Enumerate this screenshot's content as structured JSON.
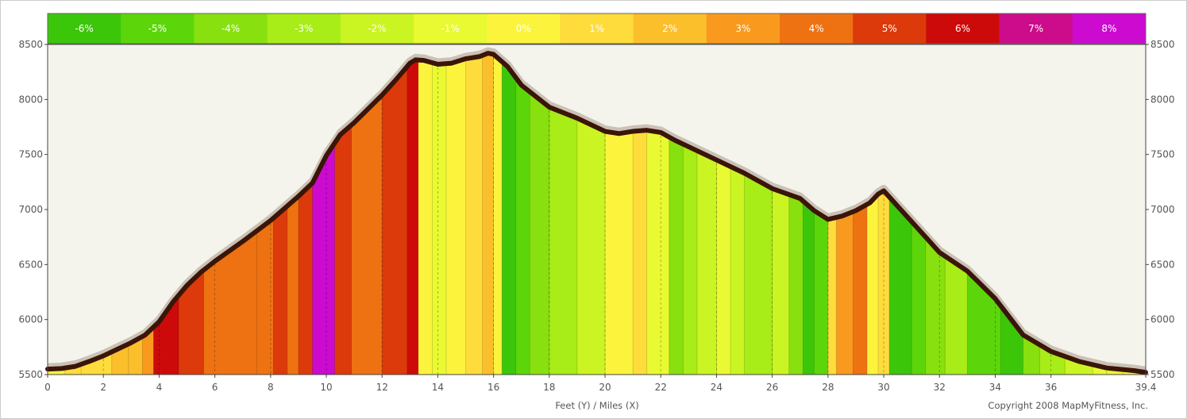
{
  "chart_data": {
    "type": "area",
    "title": "",
    "xlabel": "Feet (Y) / Miles (X)",
    "ylabel": "",
    "copyright": "Copyright 2008 MapMyFitness, Inc.",
    "xlim": [
      0,
      39.4
    ],
    "ylim": [
      5500,
      8500
    ],
    "x_ticks": [
      0,
      2,
      4,
      6,
      8,
      10,
      12,
      14,
      16,
      18,
      20,
      22,
      24,
      26,
      28,
      30,
      32,
      34,
      36,
      39.4
    ],
    "x_tick_labels": [
      "0",
      "2",
      "4",
      "6",
      "8",
      "10",
      "12",
      "14",
      "16",
      "18",
      "20",
      "22",
      "24",
      "26",
      "28",
      "30",
      "32",
      "34",
      "36",
      "39.4"
    ],
    "y_ticks": [
      5500,
      6000,
      6500,
      7000,
      7500,
      8000,
      8500
    ],
    "y_tick_labels": [
      "5500",
      "6000",
      "6500",
      "7000",
      "7500",
      "8000",
      "8500"
    ],
    "grid": false,
    "legend_position": "top",
    "legend": [
      {
        "grade": -6,
        "label": "-6%",
        "color": "#3cc60a"
      },
      {
        "grade": -5,
        "label": "-5%",
        "color": "#5cd60a"
      },
      {
        "grade": -4,
        "label": "-4%",
        "color": "#88e00e"
      },
      {
        "grade": -3,
        "label": "-3%",
        "color": "#a8ec18"
      },
      {
        "grade": -2,
        "label": "-2%",
        "color": "#cbf423"
      },
      {
        "grade": -1,
        "label": "-1%",
        "color": "#e9f932"
      },
      {
        "grade": 0,
        "label": "0%",
        "color": "#fcf43c"
      },
      {
        "grade": 1,
        "label": "1%",
        "color": "#fddc3c"
      },
      {
        "grade": 2,
        "label": "2%",
        "color": "#fbbf2c"
      },
      {
        "grade": 3,
        "label": "3%",
        "color": "#f99a1e"
      },
      {
        "grade": 4,
        "label": "4%",
        "color": "#ee7212"
      },
      {
        "grade": 5,
        "label": "5%",
        "color": "#dc3a0a"
      },
      {
        "grade": 6,
        "label": "6%",
        "color": "#cc0a0a"
      },
      {
        "grade": 7,
        "label": "7%",
        "color": "#cc0c8a"
      },
      {
        "grade": 8,
        "label": "8%",
        "color": "#cc0ad0"
      }
    ],
    "colors": {
      "plot_background": "#f5f4ec",
      "outline": "#3a1508",
      "legend_border": "#666666",
      "frame": "#444444"
    },
    "series": [
      {
        "x": [
          0,
          0.5,
          1,
          1.5,
          2,
          2.5,
          3,
          3.5,
          4,
          4.5,
          5,
          5.5,
          6,
          7,
          8,
          9,
          9.5,
          10,
          10.5,
          11,
          12,
          12.5,
          13,
          13.2,
          13.5,
          14,
          14.5,
          15,
          15.5,
          15.8,
          16,
          16.5,
          17,
          18,
          19,
          20,
          20.5,
          21,
          21.5,
          22,
          22.5,
          23,
          24,
          25,
          26,
          27,
          27.5,
          28,
          28.5,
          29,
          29.5,
          29.8,
          30,
          30.5,
          31,
          31.5,
          32,
          33,
          34,
          35,
          36,
          37,
          38,
          39,
          39.4
        ],
        "y": [
          5550,
          5555,
          5575,
          5620,
          5670,
          5730,
          5790,
          5860,
          5980,
          6160,
          6310,
          6430,
          6530,
          6710,
          6900,
          7120,
          7240,
          7490,
          7680,
          7790,
          8040,
          8180,
          8330,
          8360,
          8355,
          8320,
          8330,
          8370,
          8390,
          8420,
          8410,
          8300,
          8130,
          7930,
          7830,
          7710,
          7690,
          7710,
          7720,
          7700,
          7630,
          7570,
          7450,
          7330,
          7190,
          7100,
          6990,
          6910,
          6940,
          6990,
          7060,
          7140,
          7170,
          7030,
          6890,
          6750,
          6610,
          6440,
          6190,
          5860,
          5710,
          5620,
          5560,
          5535,
          5520
        ]
      }
    ],
    "grade_segments": [
      {
        "x0": 0,
        "x1": 0.6,
        "grade": 0
      },
      {
        "x0": 0.6,
        "x1": 1.2,
        "grade": 1
      },
      {
        "x0": 1.2,
        "x1": 2.3,
        "grade": 1
      },
      {
        "x0": 2.3,
        "x1": 2.9,
        "grade": 2
      },
      {
        "x0": 2.9,
        "x1": 3.4,
        "grade": 2
      },
      {
        "x0": 3.4,
        "x1": 3.8,
        "grade": 3
      },
      {
        "x0": 3.8,
        "x1": 4.7,
        "grade": 6
      },
      {
        "x0": 4.7,
        "x1": 5.6,
        "grade": 5
      },
      {
        "x0": 5.6,
        "x1": 7.5,
        "grade": 4
      },
      {
        "x0": 7.5,
        "x1": 8.1,
        "grade": 4
      },
      {
        "x0": 8.1,
        "x1": 8.6,
        "grade": 5
      },
      {
        "x0": 8.6,
        "x1": 9.0,
        "grade": 4
      },
      {
        "x0": 9.0,
        "x1": 9.5,
        "grade": 5
      },
      {
        "x0": 9.5,
        "x1": 10.3,
        "grade": 8
      },
      {
        "x0": 10.3,
        "x1": 10.9,
        "grade": 5
      },
      {
        "x0": 10.9,
        "x1": 12.0,
        "grade": 4
      },
      {
        "x0": 12.0,
        "x1": 12.9,
        "grade": 5
      },
      {
        "x0": 12.9,
        "x1": 13.3,
        "grade": 6
      },
      {
        "x0": 13.3,
        "x1": 13.8,
        "grade": 0
      },
      {
        "x0": 13.8,
        "x1": 14.3,
        "grade": -1
      },
      {
        "x0": 14.3,
        "x1": 15.0,
        "grade": 0
      },
      {
        "x0": 15.0,
        "x1": 15.6,
        "grade": 1
      },
      {
        "x0": 15.6,
        "x1": 16.0,
        "grade": 2
      },
      {
        "x0": 16.0,
        "x1": 16.3,
        "grade": 0
      },
      {
        "x0": 16.3,
        "x1": 16.8,
        "grade": -6
      },
      {
        "x0": 16.8,
        "x1": 17.3,
        "grade": -5
      },
      {
        "x0": 17.3,
        "x1": 18.0,
        "grade": -4
      },
      {
        "x0": 18.0,
        "x1": 19.0,
        "grade": -3
      },
      {
        "x0": 19.0,
        "x1": 20.0,
        "grade": -2
      },
      {
        "x0": 20.0,
        "x1": 21.0,
        "grade": 0
      },
      {
        "x0": 21.0,
        "x1": 21.5,
        "grade": 1
      },
      {
        "x0": 21.5,
        "x1": 22.3,
        "grade": -1
      },
      {
        "x0": 22.3,
        "x1": 22.8,
        "grade": -4
      },
      {
        "x0": 22.8,
        "x1": 23.3,
        "grade": -3
      },
      {
        "x0": 23.3,
        "x1": 24.0,
        "grade": -2
      },
      {
        "x0": 24.0,
        "x1": 24.5,
        "grade": -1
      },
      {
        "x0": 24.5,
        "x1": 25.0,
        "grade": -2
      },
      {
        "x0": 25.0,
        "x1": 26.0,
        "grade": -3
      },
      {
        "x0": 26.0,
        "x1": 26.6,
        "grade": -2
      },
      {
        "x0": 26.6,
        "x1": 27.1,
        "grade": -4
      },
      {
        "x0": 27.1,
        "x1": 27.5,
        "grade": -6
      },
      {
        "x0": 27.5,
        "x1": 28.0,
        "grade": -5
      },
      {
        "x0": 28.0,
        "x1": 28.3,
        "grade": 1
      },
      {
        "x0": 28.3,
        "x1": 28.9,
        "grade": 3
      },
      {
        "x0": 28.9,
        "x1": 29.4,
        "grade": 4
      },
      {
        "x0": 29.4,
        "x1": 29.8,
        "grade": 0
      },
      {
        "x0": 29.8,
        "x1": 30.2,
        "grade": 1
      },
      {
        "x0": 30.2,
        "x1": 31.0,
        "grade": -6
      },
      {
        "x0": 31.0,
        "x1": 31.5,
        "grade": -5
      },
      {
        "x0": 31.5,
        "x1": 32.2,
        "grade": -4
      },
      {
        "x0": 32.2,
        "x1": 33.0,
        "grade": -3
      },
      {
        "x0": 33.0,
        "x1": 34.2,
        "grade": -5
      },
      {
        "x0": 34.2,
        "x1": 35.0,
        "grade": -6
      },
      {
        "x0": 35.0,
        "x1": 35.6,
        "grade": -4
      },
      {
        "x0": 35.6,
        "x1": 36.5,
        "grade": -3
      },
      {
        "x0": 36.5,
        "x1": 37.5,
        "grade": -2
      },
      {
        "x0": 37.5,
        "x1": 38.6,
        "grade": -1
      },
      {
        "x0": 38.6,
        "x1": 39.4,
        "grade": 0
      }
    ]
  }
}
